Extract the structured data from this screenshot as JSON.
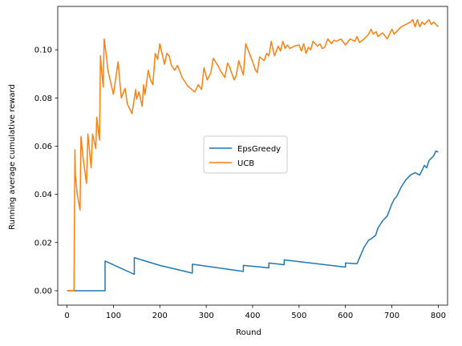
{
  "chart_data": {
    "type": "line",
    "xlabel": "Round",
    "ylabel": "Running average cumulative reward",
    "xlim": [
      -20,
      820
    ],
    "ylim": [
      -0.006,
      0.118
    ],
    "xticks": [
      0,
      100,
      200,
      300,
      400,
      500,
      600,
      700,
      800
    ],
    "yticks": [
      0.0,
      0.02,
      0.04,
      0.06,
      0.08,
      0.1
    ],
    "ytick_labels": [
      "0.00",
      "0.02",
      "0.04",
      "0.06",
      "0.08",
      "0.10"
    ],
    "grid": false,
    "legend_position": "center",
    "series": [
      {
        "name": "EpsGreedy",
        "color": "#1f77b4",
        "x": [
          0,
          82,
          82,
          145,
          145,
          200,
          270,
          270,
          380,
          380,
          435,
          435,
          468,
          468,
          600,
          600,
          625,
          630,
          640,
          650,
          655,
          665,
          670,
          680,
          690,
          700,
          705,
          710,
          720,
          730,
          740,
          750,
          760,
          770,
          775,
          780,
          790,
          795,
          800
        ],
        "y": [
          0.0,
          0.0,
          0.0123,
          0.0068,
          0.0137,
          0.0105,
          0.0073,
          0.011,
          0.008,
          0.0105,
          0.0095,
          0.0115,
          0.0108,
          0.0128,
          0.0098,
          0.0115,
          0.0112,
          0.0135,
          0.018,
          0.021,
          0.0215,
          0.023,
          0.026,
          0.029,
          0.031,
          0.036,
          0.038,
          0.039,
          0.043,
          0.046,
          0.048,
          0.049,
          0.048,
          0.052,
          0.051,
          0.054,
          0.056,
          0.058,
          0.0575
        ]
      },
      {
        "name": "UCB",
        "color": "#ff7f0e",
        "x": [
          0,
          15,
          17,
          18,
          22,
          28,
          30,
          35,
          42,
          45,
          52,
          55,
          62,
          64,
          70,
          72,
          75,
          78,
          80,
          85,
          88,
          100,
          110,
          117,
          125,
          130,
          140,
          148,
          150,
          155,
          162,
          165,
          168,
          175,
          180,
          185,
          190,
          195,
          200,
          210,
          215,
          220,
          225,
          232,
          238,
          248,
          260,
          275,
          283,
          290,
          295,
          302,
          310,
          315,
          325,
          330,
          340,
          346,
          350,
          360,
          365,
          370,
          380,
          385,
          393,
          400,
          406,
          410,
          415,
          425,
          430,
          435,
          440,
          447,
          455,
          460,
          465,
          470,
          475,
          480,
          490,
          500,
          505,
          510,
          515,
          520,
          525,
          530,
          540,
          545,
          550,
          555,
          562,
          570,
          575,
          580,
          590,
          600,
          610,
          620,
          625,
          630,
          640,
          650,
          655,
          660,
          666,
          670,
          680,
          690,
          700,
          705,
          710,
          715,
          720,
          730,
          740,
          745,
          750,
          755,
          760,
          765,
          770,
          775,
          780,
          785,
          790,
          795,
          800
        ],
        "y": [
          0.0,
          0.0,
          0.0585,
          0.048,
          0.04,
          0.0335,
          0.064,
          0.0545,
          0.0445,
          0.065,
          0.051,
          0.065,
          0.059,
          0.072,
          0.0625,
          0.0975,
          0.0905,
          0.0845,
          0.1045,
          0.097,
          0.0915,
          0.0815,
          0.095,
          0.08,
          0.084,
          0.0775,
          0.0735,
          0.0835,
          0.0795,
          0.0825,
          0.0765,
          0.0855,
          0.0815,
          0.0915,
          0.0875,
          0.0855,
          0.0985,
          0.096,
          0.1025,
          0.094,
          0.0985,
          0.0975,
          0.0935,
          0.0915,
          0.0935,
          0.0885,
          0.085,
          0.0825,
          0.0855,
          0.0835,
          0.0925,
          0.0875,
          0.0905,
          0.0965,
          0.0935,
          0.0915,
          0.0885,
          0.0945,
          0.093,
          0.0875,
          0.0895,
          0.0955,
          0.0895,
          0.1025,
          0.0985,
          0.095,
          0.0915,
          0.0905,
          0.097,
          0.0955,
          0.0985,
          0.0975,
          0.1035,
          0.0975,
          0.1015,
          0.0995,
          0.1035,
          0.1005,
          0.102,
          0.1005,
          0.1015,
          0.102,
          0.0995,
          0.1025,
          0.0985,
          0.101,
          0.1,
          0.1035,
          0.1015,
          0.1025,
          0.1005,
          0.101,
          0.1045,
          0.1025,
          0.104,
          0.1035,
          0.1045,
          0.102,
          0.1045,
          0.1035,
          0.1055,
          0.103,
          0.1045,
          0.1065,
          0.1085,
          0.1065,
          0.1075,
          0.1055,
          0.107,
          0.1045,
          0.1085,
          0.1065,
          0.1075,
          0.1085,
          0.1095,
          0.1105,
          0.1115,
          0.1125,
          0.1095,
          0.1125,
          0.1095,
          0.1115,
          0.1105,
          0.1115,
          0.1125,
          0.1105,
          0.1115,
          0.1105,
          0.1095
        ]
      }
    ]
  }
}
